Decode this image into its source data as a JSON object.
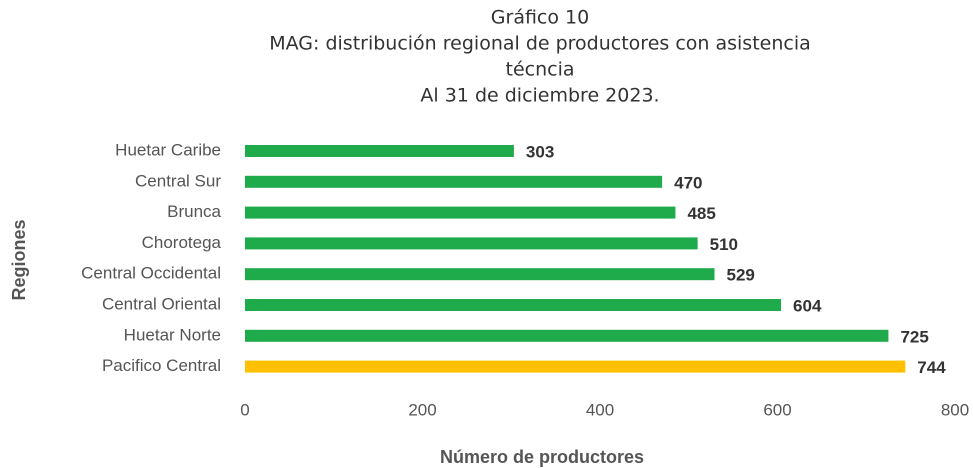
{
  "chart_data": {
    "type": "bar",
    "orientation": "horizontal",
    "title": [
      "Gráfico 10",
      "MAG: distribución regional de productores con asistencia",
      "técncia",
      "Al 31 de diciembre 2023."
    ],
    "categories": [
      "Huetar Caribe",
      "Central Sur",
      "Brunca",
      "Chorotega",
      "Central Occidental",
      "Central Oriental",
      "Huetar Norte",
      "Pacifico Central"
    ],
    "values": [
      303,
      470,
      485,
      510,
      529,
      604,
      725,
      744
    ],
    "colors": [
      "#1faa4b",
      "#1faa4b",
      "#1faa4b",
      "#1faa4b",
      "#1faa4b",
      "#1faa4b",
      "#1faa4b",
      "#ffc000"
    ],
    "xlim": [
      0,
      800
    ],
    "xticks": [
      0,
      200,
      400,
      600,
      800
    ],
    "xlabel": "Número de productores",
    "ylabel": "Regiones",
    "grid": false
  }
}
